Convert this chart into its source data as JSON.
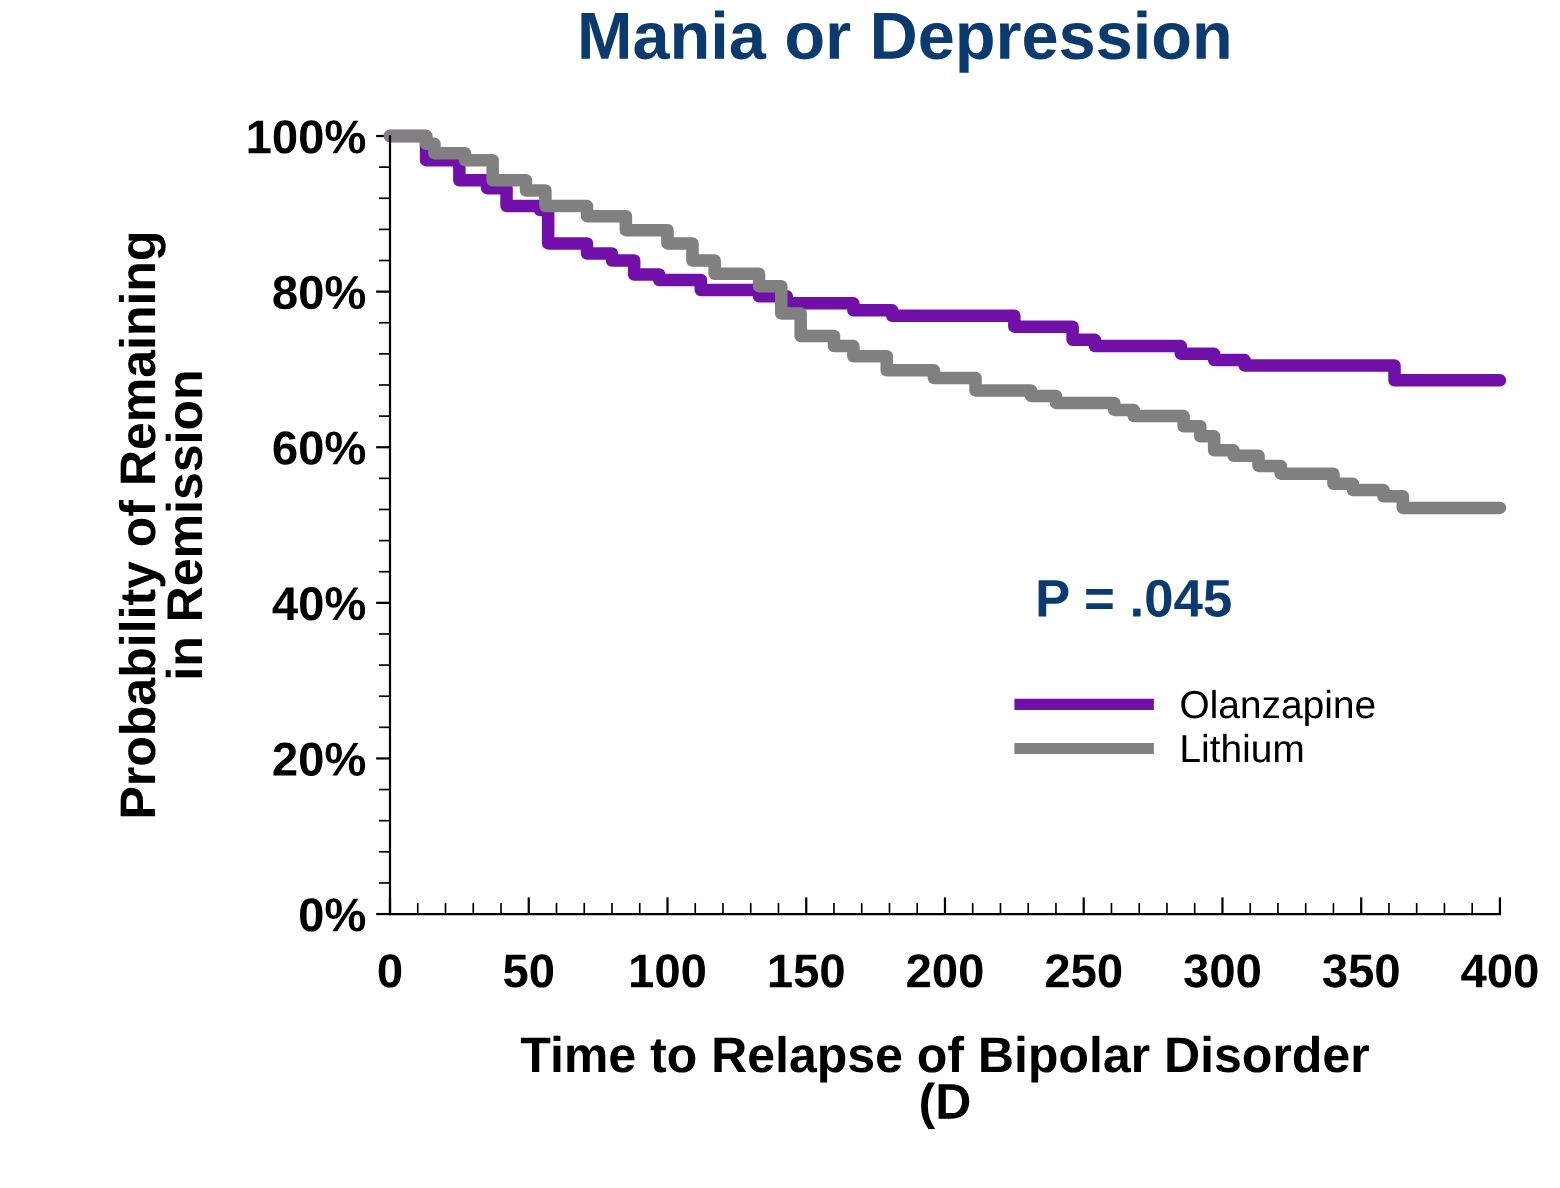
{
  "chart_data": {
    "type": "step",
    "title": "Mania or Depression",
    "xlabel": "Time to Relapse of Bipolar Disorder\n(D",
    "ylabel": "Probability of Remaining\nin Remission",
    "annotations": [
      "P = .045"
    ],
    "series": [
      {
        "name": "Olanzapine",
        "color": "#7010a8",
        "x": [
          0,
          13,
          25,
          35,
          42,
          54,
          57,
          71,
          80,
          88,
          97,
          112,
          133,
          143,
          167,
          181,
          225,
          246,
          254,
          285,
          297,
          308,
          362,
          400
        ],
        "values": [
          100,
          96.9,
          94.3,
          93.3,
          91,
          90.5,
          86.2,
          84.9,
          84,
          82.2,
          81.5,
          80.2,
          79.4,
          78.5,
          77.6,
          76.9,
          75.5,
          73.8,
          73,
          72,
          71.2,
          70.5,
          68.6,
          68.6
        ]
      },
      {
        "name": "Lithium",
        "color": "#808080",
        "x": [
          0,
          13,
          16,
          27,
          37,
          49,
          56,
          71,
          85,
          100,
          109,
          117,
          133,
          141,
          148,
          160,
          167,
          179,
          196,
          211,
          231,
          240,
          261,
          268,
          286,
          292,
          297,
          304,
          313,
          321,
          340,
          347,
          358,
          365,
          400
        ],
        "values": [
          100,
          99,
          97.8,
          96.9,
          94.3,
          93,
          91,
          89.7,
          87.9,
          86.2,
          84,
          82.3,
          80.7,
          77.2,
          74.3,
          73,
          71.7,
          69.9,
          68.9,
          67.3,
          66.6,
          65.7,
          64.8,
          64,
          62.7,
          61.4,
          59.6,
          58.9,
          57.6,
          56.6,
          55.3,
          54.5,
          53.7,
          52.2,
          52.2
        ]
      }
    ],
    "xlim": [
      0,
      400
    ],
    "xticks": [
      0,
      50,
      100,
      150,
      200,
      250,
      300,
      350,
      400
    ],
    "ylim": [
      0,
      100
    ],
    "yticks": [
      {
        "value": 0,
        "label": "0%"
      },
      {
        "value": 20,
        "label": "20%"
      },
      {
        "value": 40,
        "label": "40%"
      },
      {
        "value": 60,
        "label": "60%"
      },
      {
        "value": 80,
        "label": "80%"
      },
      {
        "value": 100,
        "label": "100%"
      }
    ],
    "legend": "lower right",
    "grid": false,
    "marker": "none",
    "line_style": "solid"
  }
}
